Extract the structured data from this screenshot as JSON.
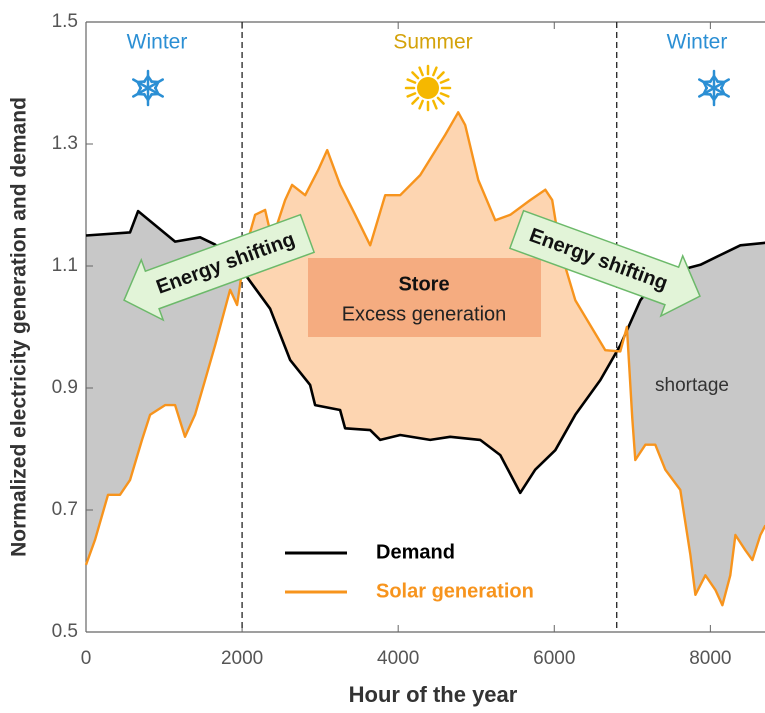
{
  "chart_data": {
    "type": "line",
    "xlabel": "Hour of the year",
    "ylabel": "Normalized electricity generation and demand",
    "xlim": [
      0,
      8700
    ],
    "xticks": [
      0,
      2000,
      4000,
      6000,
      8000
    ],
    "ylim": [
      0.5,
      1.5
    ],
    "yticks": [
      0.5,
      0.7,
      0.9,
      1.1,
      1.3,
      1.5
    ],
    "dividers": [
      2000,
      6800
    ],
    "series": [
      {
        "name": "Demand",
        "color": "#000000",
        "x": [
          0,
          564,
          667,
          1141,
          1462,
          1654,
          2000,
          2359,
          2615,
          2872,
          2936,
          3256,
          3320,
          3641,
          3769,
          4026,
          4410,
          4667,
          5051,
          5308,
          5564,
          5756,
          6013,
          6269,
          6590,
          6846,
          7103,
          7359,
          7872,
          8128,
          8385,
          8705
        ],
        "values": [
          1.15,
          1.155,
          1.19,
          1.14,
          1.147,
          1.135,
          1.093,
          1.03,
          0.946,
          0.905,
          0.872,
          0.864,
          0.834,
          0.831,
          0.815,
          0.823,
          0.815,
          0.82,
          0.815,
          0.79,
          0.728,
          0.766,
          0.798,
          0.856,
          0.913,
          0.97,
          1.044,
          1.085,
          1.102,
          1.118,
          1.134,
          1.138
        ]
      },
      {
        "name": "Solar generation",
        "color": "#f7941d",
        "x": [
          0,
          115,
          282,
          436,
          564,
          718,
          821,
          1013,
          1141,
          1269,
          1397,
          1526,
          1654,
          1846,
          1936,
          2038,
          2167,
          2295,
          2385,
          2551,
          2641,
          2808,
          2974,
          3090,
          3256,
          3449,
          3641,
          3833,
          4026,
          4282,
          4603,
          4769,
          4859,
          5026,
          5244,
          5436,
          5692,
          5885,
          5974,
          6077,
          6269,
          6462,
          6654,
          6846,
          6930,
          7000,
          7038,
          7167,
          7295,
          7423,
          7615,
          7744,
          7808,
          7936,
          8064,
          8154,
          8256,
          8321,
          8449,
          8538,
          8641,
          8705
        ],
        "values": [
          0.61,
          0.651,
          0.725,
          0.725,
          0.749,
          0.815,
          0.856,
          0.872,
          0.872,
          0.82,
          0.856,
          0.913,
          0.97,
          1.061,
          1.036,
          1.126,
          1.184,
          1.192,
          1.143,
          1.208,
          1.233,
          1.216,
          1.257,
          1.29,
          1.233,
          1.184,
          1.134,
          1.216,
          1.216,
          1.249,
          1.315,
          1.352,
          1.331,
          1.241,
          1.175,
          1.184,
          1.208,
          1.225,
          1.208,
          1.126,
          1.044,
          1.003,
          0.962,
          0.96,
          1.0,
          0.85,
          0.782,
          0.807,
          0.807,
          0.766,
          0.733,
          0.626,
          0.561,
          0.593,
          0.569,
          0.544,
          0.593,
          0.659,
          0.634,
          0.618,
          0.659,
          0.675
        ]
      }
    ],
    "annotations": [
      "Winter",
      "Summer",
      "Winter",
      "Energy shifting",
      "Energy shifting",
      "Store",
      "Excess generation",
      "shortage"
    ]
  }
}
